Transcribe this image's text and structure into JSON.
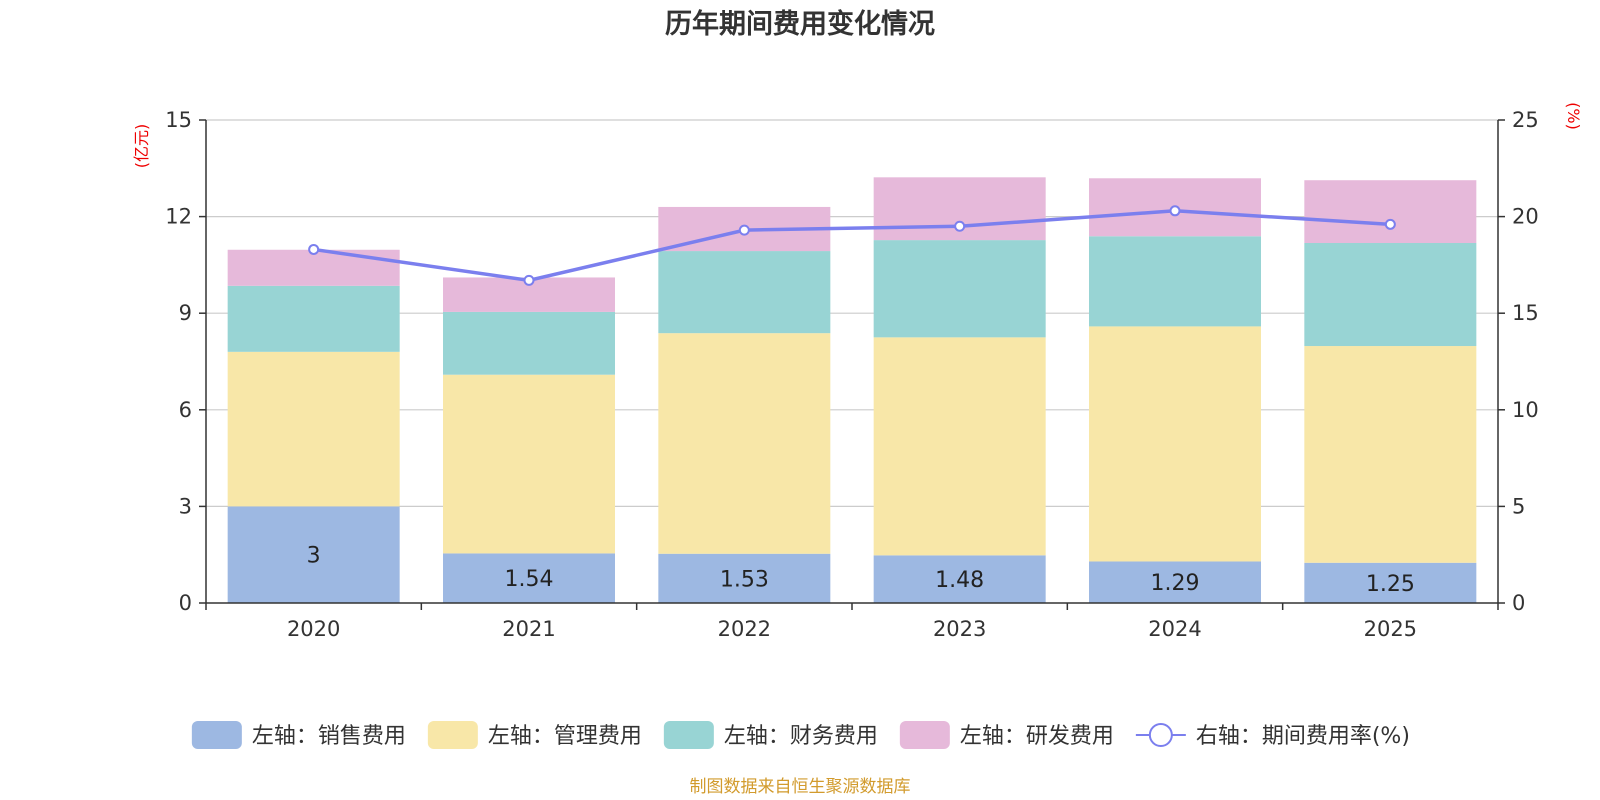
{
  "chart_data": {
    "type": "bar",
    "stacked": true,
    "title": "历年期间费用变化情况",
    "categories": [
      "2020",
      "2021",
      "2022",
      "2023",
      "2024",
      "2025"
    ],
    "left_axis": {
      "unit_label": "(亿元)",
      "range": [
        0,
        15
      ],
      "ticks": [
        "0",
        "3",
        "6",
        "9",
        "12",
        "15"
      ]
    },
    "right_axis": {
      "unit_label": "(%)",
      "range": [
        0,
        25
      ],
      "ticks": [
        "0",
        "5",
        "10",
        "15",
        "20",
        "25"
      ]
    },
    "series": [
      {
        "name": "左轴：销售费用",
        "color": "#9db8e2",
        "values": [
          3.0,
          1.54,
          1.53,
          1.48,
          1.29,
          1.25
        ],
        "labels": [
          "3",
          "1.54",
          "1.53",
          "1.48",
          "1.29",
          "1.25"
        ]
      },
      {
        "name": "左轴：管理费用",
        "color": "#f8e7a8",
        "values": [
          4.8,
          5.55,
          6.85,
          6.77,
          7.3,
          6.73
        ]
      },
      {
        "name": "左轴：财务费用",
        "color": "#98d4d4",
        "values": [
          2.05,
          1.95,
          2.55,
          3.02,
          2.8,
          3.2
        ]
      },
      {
        "name": "左轴：研发费用",
        "color": "#e6b9da",
        "values": [
          1.12,
          1.07,
          1.37,
          1.95,
          1.8,
          1.95
        ]
      }
    ],
    "line_series": {
      "name": "右轴：期间费用率(%)",
      "color": "#7b7fee",
      "values": [
        18.3,
        16.7,
        19.3,
        19.5,
        20.3,
        19.6
      ]
    },
    "grid": true,
    "legend_position": "bottom",
    "source_text": "制图数据来自恒生聚源数据库"
  }
}
